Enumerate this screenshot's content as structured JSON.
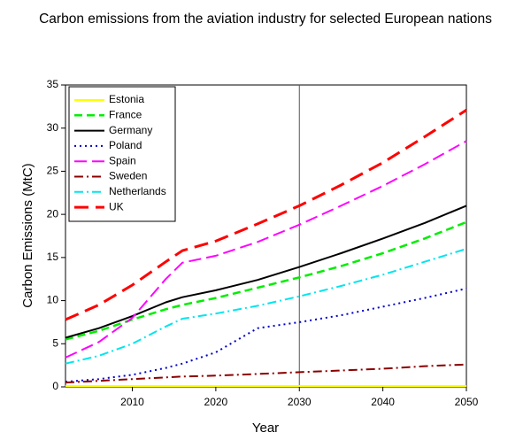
{
  "chart_data": {
    "type": "line",
    "title": "Carbon emissions from the aviation industry for selected European nations",
    "x_label": "Year",
    "y_label": "Carbon Emissions (MtC)",
    "x": [
      2002,
      2006,
      2010,
      2014,
      2016,
      2020,
      2025,
      2030,
      2035,
      2040,
      2045,
      2050
    ],
    "xlim": [
      2002,
      2050
    ],
    "xticks": [
      2010,
      2020,
      2030,
      2040,
      2050
    ],
    "ylim": [
      0,
      35
    ],
    "yticks": [
      0,
      5,
      10,
      15,
      20,
      25,
      30,
      35
    ],
    "vline": 2030,
    "legend": "upper-left",
    "series": [
      {
        "name": "Estonia",
        "color": "#ffff00",
        "dash": "solid",
        "values": [
          0.1,
          0.1,
          0.1,
          0.1,
          0.1,
          0.1,
          0.1,
          0.1,
          0.1,
          0.1,
          0.1,
          0.1
        ]
      },
      {
        "name": "France",
        "color": "#00ee00",
        "dash": "dashed",
        "values": [
          5.5,
          6.5,
          7.8,
          9.0,
          9.5,
          10.3,
          11.5,
          12.7,
          14.0,
          15.5,
          17.2,
          19.1
        ]
      },
      {
        "name": "Germany",
        "color": "#000000",
        "dash": "solid",
        "values": [
          5.7,
          6.8,
          8.2,
          9.8,
          10.4,
          11.2,
          12.4,
          13.9,
          15.5,
          17.2,
          19.0,
          21.0
        ]
      },
      {
        "name": "Poland",
        "color": "#0000cc",
        "dash": "dotted",
        "values": [
          0.6,
          0.9,
          1.4,
          2.2,
          2.7,
          4.0,
          6.8,
          7.5,
          8.3,
          9.3,
          10.3,
          11.4
        ]
      },
      {
        "name": "Spain",
        "color": "#ff00ff",
        "dash": "longdash",
        "values": [
          3.4,
          5.2,
          8.0,
          12.5,
          14.4,
          15.2,
          16.8,
          18.8,
          21.0,
          23.3,
          25.8,
          28.5
        ]
      },
      {
        "name": "Sweden",
        "color": "#8b0000",
        "dash": "dashdot",
        "values": [
          0.5,
          0.7,
          0.9,
          1.1,
          1.2,
          1.3,
          1.5,
          1.7,
          1.9,
          2.1,
          2.4,
          2.6
        ]
      },
      {
        "name": "Netherlands",
        "color": "#00e5ee",
        "dash": "dashdot",
        "values": [
          2.7,
          3.6,
          5.0,
          7.0,
          7.9,
          8.5,
          9.4,
          10.5,
          11.7,
          13.0,
          14.5,
          16.0
        ]
      },
      {
        "name": "UK",
        "color": "#ff0000",
        "dash": "heavydash",
        "values": [
          7.8,
          9.5,
          11.8,
          14.5,
          15.8,
          16.9,
          18.9,
          21.0,
          23.4,
          26.0,
          29.0,
          32.1
        ]
      }
    ]
  }
}
